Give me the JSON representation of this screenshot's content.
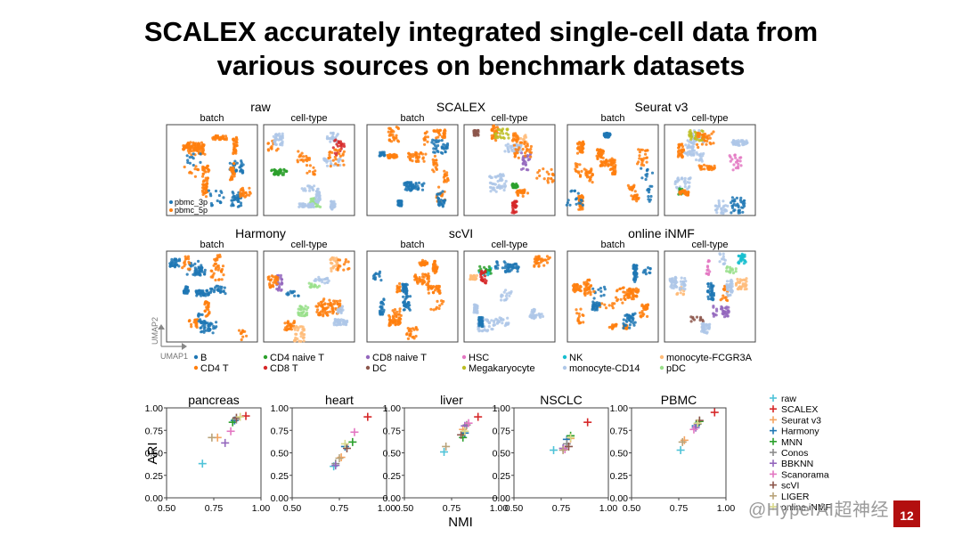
{
  "title": {
    "line1": "SCALEX accurately integrated single-cell data from",
    "line2": "various sources on benchmark datasets"
  },
  "umap_panel": {
    "methods": [
      {
        "name": "raw"
      },
      {
        "name": "SCALEX"
      },
      {
        "name": "Seurat v3"
      },
      {
        "name": "Harmony"
      },
      {
        "name": "scVI"
      },
      {
        "name": "online iNMF"
      }
    ],
    "subtitles": {
      "batch": "batch",
      "celltype": "cell-type"
    },
    "batch_legend": [
      "pbmc_3p",
      "pbmc_5p"
    ],
    "axis_labels": {
      "x": "UMAP1",
      "y": "UMAP2"
    },
    "celltype_legend": [
      {
        "label": "B",
        "color": "#1f77b4"
      },
      {
        "label": "CD4 T",
        "color": "#ff7f0e"
      },
      {
        "label": "CD4 naive T",
        "color": "#2ca02c"
      },
      {
        "label": "CD8 T",
        "color": "#d62728"
      },
      {
        "label": "CD8 naive T",
        "color": "#9467bd"
      },
      {
        "label": "DC",
        "color": "#8c564b"
      },
      {
        "label": "HSC",
        "color": "#e377c2"
      },
      {
        "label": "Megakaryocyte",
        "color": "#bcbd22"
      },
      {
        "label": "NK",
        "color": "#17becf"
      },
      {
        "label": "monocyte-CD14",
        "color": "#aec7e8"
      },
      {
        "label": "monocyte-FCGR3A",
        "color": "#ffbb78"
      },
      {
        "label": "pDC",
        "color": "#98df8a"
      }
    ],
    "colors": {
      "pbmc_3p": "#1f77b4",
      "pbmc_5p": "#ff7f0e"
    }
  },
  "chart_data": {
    "type": "scatter",
    "xlabel": "NMI",
    "ylabel": "ARI",
    "xlim": [
      0.5,
      1.0
    ],
    "ylim": [
      0.0,
      1.0
    ],
    "xticks": [
      "0.50",
      "0.75",
      "1.00"
    ],
    "yticks": [
      "0.00",
      "0.25",
      "0.50",
      "0.75",
      "1.00"
    ],
    "marker": "+",
    "legend": [
      {
        "name": "raw",
        "color": "#4fc3d8"
      },
      {
        "name": "SCALEX",
        "color": "#d62728"
      },
      {
        "name": "Seurat v3",
        "color": "#f4a460"
      },
      {
        "name": "Harmony",
        "color": "#1f77b4"
      },
      {
        "name": "MNN",
        "color": "#2ca02c"
      },
      {
        "name": "Conos",
        "color": "#8c8c8c"
      },
      {
        "name": "BBKNN",
        "color": "#9467bd"
      },
      {
        "name": "Scanorama",
        "color": "#e377c2"
      },
      {
        "name": "scVI",
        "color": "#8c564b"
      },
      {
        "name": "LIGER",
        "color": "#b9a37a"
      },
      {
        "name": "online iNMF",
        "color": "#d9d98a"
      }
    ],
    "datasets": [
      {
        "name": "pancreas",
        "points": {
          "raw": [
            0.69,
            0.38
          ],
          "SCALEX": [
            0.92,
            0.91
          ],
          "Seurat v3": [
            0.77,
            0.67
          ],
          "Harmony": [
            0.86,
            0.86
          ],
          "MNN": [
            0.85,
            0.84
          ],
          "Conos": [
            0.87,
            0.87
          ],
          "BBKNN": [
            0.81,
            0.61
          ],
          "Scanorama": [
            0.84,
            0.74
          ],
          "scVI": [
            0.87,
            0.89
          ],
          "LIGER": [
            0.74,
            0.67
          ],
          "online iNMF": [
            0.89,
            0.9
          ]
        }
      },
      {
        "name": "heart",
        "points": {
          "raw": [
            0.72,
            0.35
          ],
          "SCALEX": [
            0.9,
            0.9
          ],
          "Seurat v3": [
            0.76,
            0.45
          ],
          "Harmony": [
            0.78,
            0.57
          ],
          "MNN": [
            0.82,
            0.62
          ],
          "Conos": [
            0.73,
            0.38
          ],
          "BBKNN": [
            0.73,
            0.36
          ],
          "Scanorama": [
            0.83,
            0.73
          ],
          "scVI": [
            0.79,
            0.55
          ],
          "LIGER": [
            0.75,
            0.44
          ],
          "online iNMF": [
            0.78,
            0.6
          ]
        }
      },
      {
        "name": "liver",
        "points": {
          "raw": [
            0.71,
            0.51
          ],
          "SCALEX": [
            0.89,
            0.9
          ],
          "Seurat v3": [
            0.81,
            0.76
          ],
          "Harmony": [
            0.82,
            0.72
          ],
          "MNN": [
            0.81,
            0.67
          ],
          "Conos": [
            0.83,
            0.81
          ],
          "BBKNN": [
            0.82,
            0.8
          ],
          "Scanorama": [
            0.84,
            0.83
          ],
          "scVI": [
            0.8,
            0.7
          ],
          "LIGER": [
            0.72,
            0.57
          ],
          "online iNMF": [
            0.82,
            0.74
          ]
        }
      },
      {
        "name": "NSCLC",
        "points": {
          "raw": [
            0.71,
            0.53
          ],
          "SCALEX": [
            0.89,
            0.84
          ],
          "Seurat v3": [
            0.8,
            0.66
          ],
          "Harmony": [
            0.78,
            0.65
          ],
          "MNN": [
            0.8,
            0.69
          ],
          "Conos": [
            0.78,
            0.6
          ],
          "BBKNN": [
            0.76,
            0.55
          ],
          "Scanorama": [
            0.77,
            0.54
          ],
          "scVI": [
            0.79,
            0.57
          ],
          "LIGER": [
            0.76,
            0.53
          ],
          "online iNMF": [
            0.8,
            0.67
          ]
        }
      },
      {
        "name": "PBMC",
        "points": {
          "raw": [
            0.76,
            0.53
          ],
          "SCALEX": [
            0.94,
            0.95
          ],
          "Seurat v3": [
            0.78,
            0.64
          ],
          "Harmony": [
            0.84,
            0.8
          ],
          "MNN": [
            0.86,
            0.85
          ],
          "Conos": [
            0.85,
            0.82
          ],
          "BBKNN": [
            0.84,
            0.78
          ],
          "Scanorama": [
            0.83,
            0.76
          ],
          "scVI": [
            0.86,
            0.86
          ],
          "LIGER": [
            0.77,
            0.62
          ],
          "online iNMF": [
            0.85,
            0.83
          ]
        }
      }
    ]
  },
  "watermark": "@HyperAI超神经",
  "page_number": "12"
}
